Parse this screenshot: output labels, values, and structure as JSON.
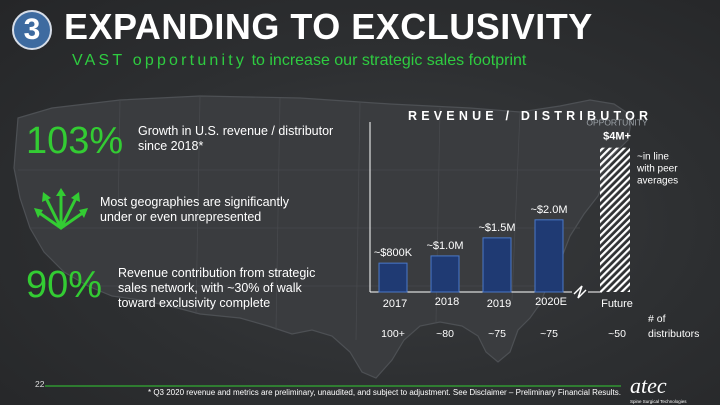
{
  "slide": {
    "number": "3",
    "title": "EXPANDING TO EXCLUSIVITY",
    "subtitle_spaced": "VAST opportunity",
    "subtitle_rest": " to increase our strategic sales footprint",
    "page_number": "22",
    "footnote": "* Q3 2020 revenue and metrics are preliminary, unaudited, and subject to adjustment.  See Disclaimer – Preliminary Financial Results.",
    "logo_text": "atec",
    "logo_tagline": "Spine Surgical Technologies"
  },
  "stats": [
    {
      "value": "103%",
      "description": "Growth in U.S. revenue / distributor since 2018*"
    },
    {
      "value": "",
      "description": "Most geographies are significantly under or even unrepresented"
    },
    {
      "value": "90%",
      "description": "Revenue contribution from strategic sales network, with ~30% of walk toward exclusivity complete"
    }
  ],
  "icons": {
    "expand": "expand-arrows-icon",
    "break": "lightning-break-icon"
  },
  "colors": {
    "accent_green": "#33cc33",
    "bar_fill": "#1f3a73",
    "bar_stroke": "#4a78c8",
    "badge": "#3e6ba0"
  },
  "chart_data": {
    "type": "bar",
    "title": "REVENUE / DISTRIBUTOR",
    "categories": [
      "2017",
      "2018",
      "2019",
      "2020E",
      "Future"
    ],
    "values": [
      0.8,
      1.0,
      1.5,
      2.0,
      4.0
    ],
    "data_labels": [
      "~$800K",
      "~$1.0M",
      "~$1.5M",
      "~$2.0M",
      "$4M+"
    ],
    "future_label_prefix": "OPPORTUNITY",
    "future_note": "~in line with peer averages",
    "future_pattern": "hatched",
    "distributors_label": "# of distributors",
    "distributors": [
      "100+",
      "~80",
      "~75",
      "~75",
      "~50"
    ],
    "ylim": [
      0,
      4.6
    ]
  }
}
